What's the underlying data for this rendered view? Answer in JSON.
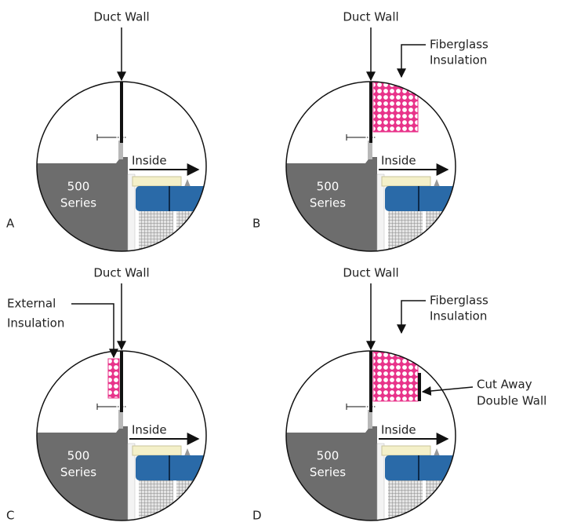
{
  "panels": [
    {
      "letter": "A",
      "duct_wall": "Duct Wall",
      "inside": "Inside",
      "series": [
        "500",
        "Series"
      ]
    },
    {
      "letter": "B",
      "duct_wall": "Duct Wall",
      "inside": "Inside",
      "series": [
        "500",
        "Series"
      ],
      "fiberglass": [
        "Fiberglass",
        "Insulation"
      ]
    },
    {
      "letter": "C",
      "duct_wall": "Duct Wall",
      "inside": "Inside",
      "series": [
        "500",
        "Series"
      ],
      "external": [
        "External",
        "Insulation"
      ]
    },
    {
      "letter": "D",
      "duct_wall": "Duct Wall",
      "inside": "Inside",
      "series": [
        "500",
        "Series"
      ],
      "fiberglass": [
        "Fiberglass",
        "Insulation"
      ],
      "cut_away": [
        "Cut Away",
        "Double Wall"
      ]
    }
  ]
}
